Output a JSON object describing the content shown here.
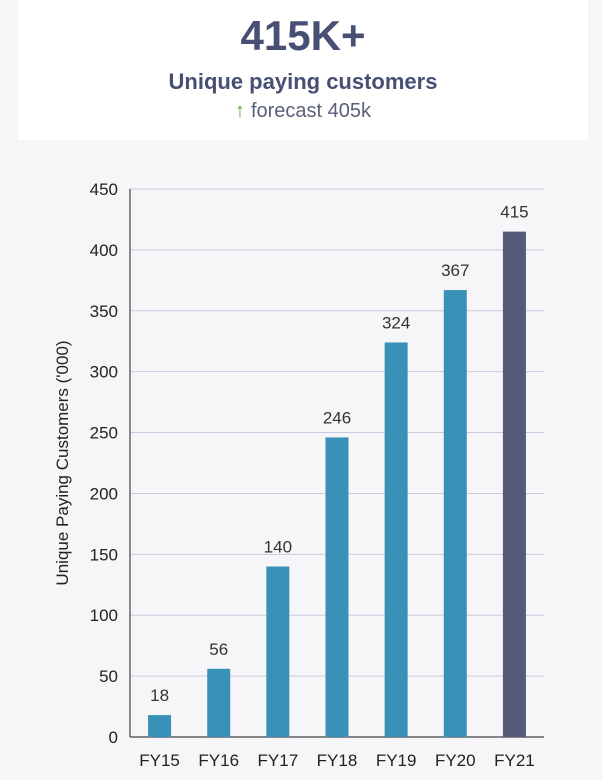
{
  "header": {
    "headline": "415K+",
    "subtitle": "Unique paying customers",
    "forecast": "forecast 405k",
    "forecast_icon": "up-arrow-icon"
  },
  "colors": {
    "bar_primary": "#3a91b8",
    "bar_highlight": "#555a79",
    "grid": "#c9cbe0",
    "arrow": "#5aa632"
  },
  "chart_data": {
    "type": "bar",
    "categories": [
      "FY15",
      "FY16",
      "FY17",
      "FY18",
      "FY19",
      "FY20",
      "FY21"
    ],
    "values": [
      18,
      56,
      140,
      246,
      324,
      367,
      415
    ],
    "data_labels": [
      "18",
      "56",
      "140",
      "246",
      "324",
      "367",
      "415"
    ],
    "highlight_index": 6,
    "ylabel": "Unique Paying Customers ('000)",
    "xlabel": "",
    "ylim": [
      0,
      450
    ],
    "yticks": [
      0,
      50,
      100,
      150,
      200,
      250,
      300,
      350,
      400,
      450
    ],
    "grid": true
  }
}
